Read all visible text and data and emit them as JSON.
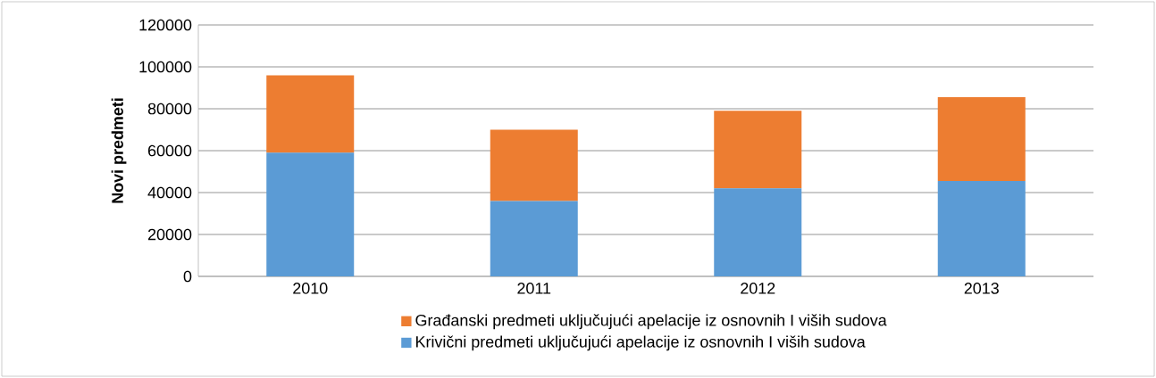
{
  "chart_data": {
    "type": "bar",
    "stacked": true,
    "ylabel": "Novi predmeti",
    "categories": [
      "2010",
      "2011",
      "2012",
      "2013"
    ],
    "series": [
      {
        "name": "Krivični predmeti uključujući apelacije iz osnovnih I viših sudova",
        "color": "#5b9bd5",
        "values": [
          59000,
          36000,
          42000,
          45500
        ]
      },
      {
        "name": "Građanski predmeti uključujući apelacije iz osnovnih I viših sudova",
        "color": "#ed7d31",
        "values": [
          37000,
          34000,
          37000,
          40000
        ]
      }
    ],
    "ylim": [
      0,
      120000
    ],
    "yticks": [
      0,
      20000,
      40000,
      60000,
      80000,
      100000,
      120000
    ],
    "grid": "y",
    "legend": "bottom"
  }
}
